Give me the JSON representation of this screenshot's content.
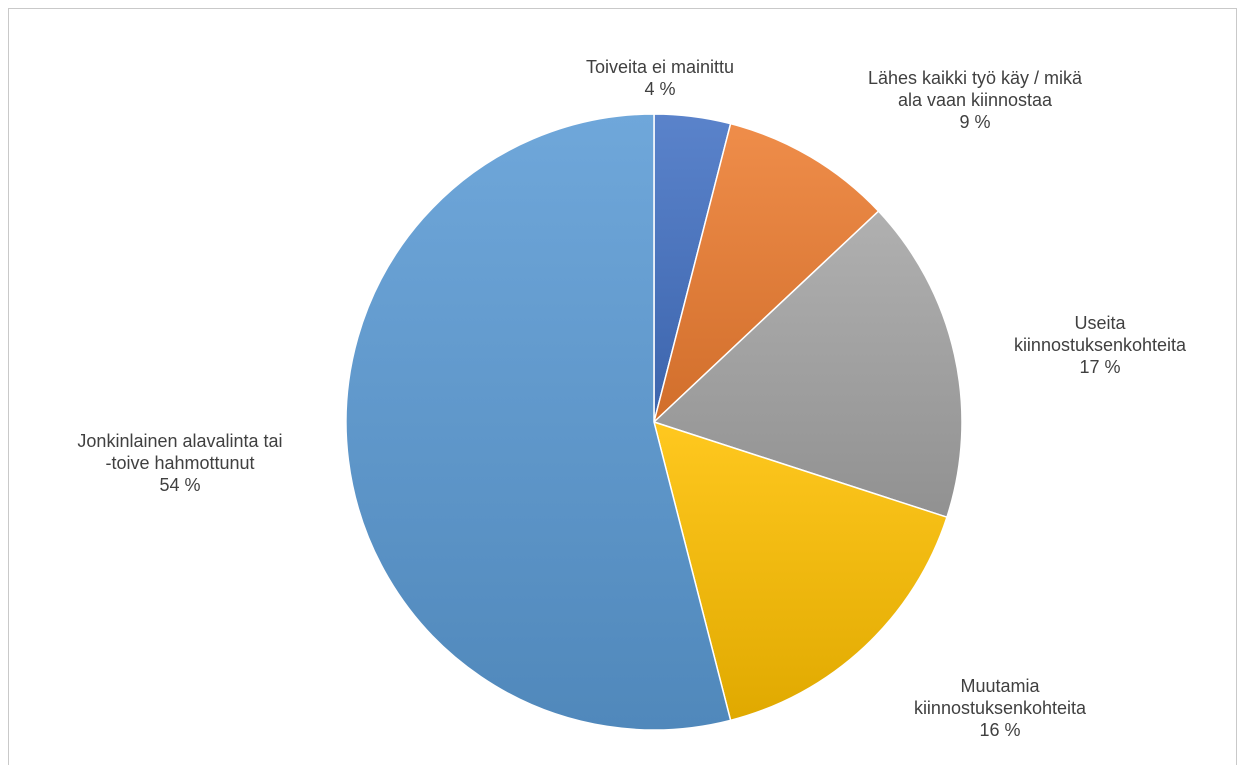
{
  "chart_data": {
    "type": "pie",
    "slices": [
      {
        "label_lines": [
          "Toiveita ei mainittu"
        ],
        "percent_label": "4 %",
        "value": 4,
        "color": "#4472c4"
      },
      {
        "label_lines": [
          "Lähes kaikki työ käy / mikä",
          "ala vaan kiinnostaa"
        ],
        "percent_label": "9 %",
        "value": 9,
        "color": "#ed7d31"
      },
      {
        "label_lines": [
          "Useita",
          "kiinnostuksenkohteita"
        ],
        "percent_label": "17 %",
        "value": 17,
        "color": "#a5a5a5"
      },
      {
        "label_lines": [
          "Muutamia",
          "kiinnostuksenkohteita"
        ],
        "percent_label": "16 %",
        "value": 16,
        "color": "#ffc000"
      },
      {
        "label_lines": [
          "Jonkinlainen alavalinta tai",
          "-toive hahmottunut"
        ],
        "percent_label": "54 %",
        "value": 54,
        "color": "#5b9bd5"
      }
    ],
    "legend": "none"
  }
}
